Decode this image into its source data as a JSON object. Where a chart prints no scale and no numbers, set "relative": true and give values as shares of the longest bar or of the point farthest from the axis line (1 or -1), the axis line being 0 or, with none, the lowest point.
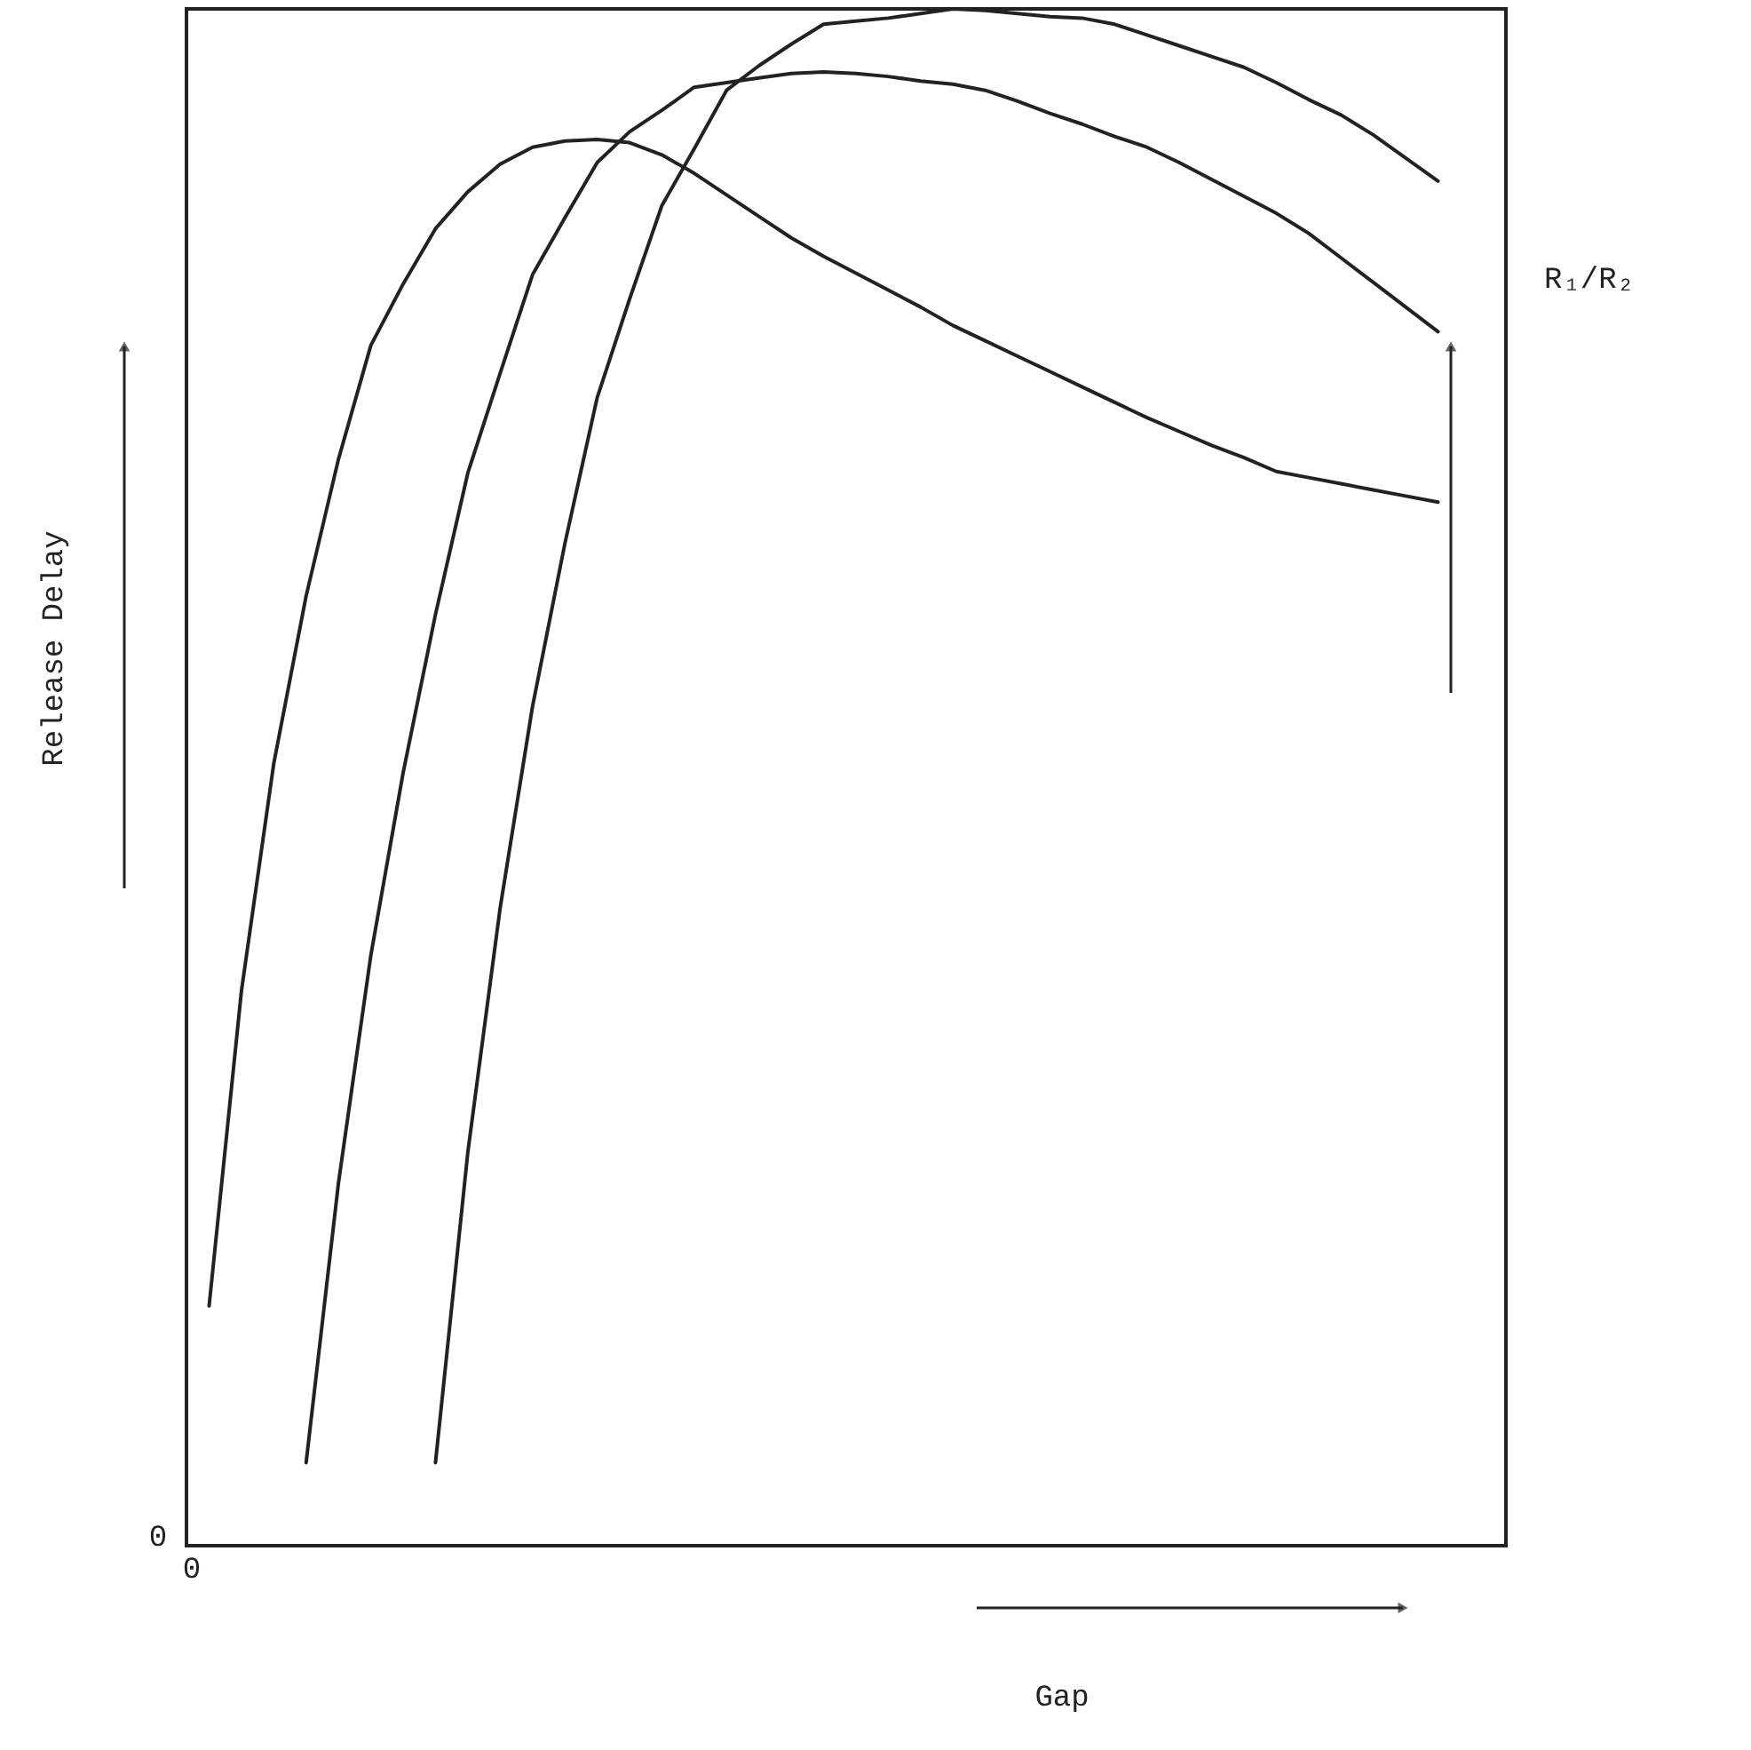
{
  "chart_data": {
    "type": "line",
    "relative": true,
    "xlabel": "Gap",
    "ylabel": "Release Delay",
    "annotations": [
      "R₁/R₂",
      "0",
      "0"
    ],
    "marker": "none",
    "line_style": "solid",
    "categories": [
      null,
      null,
      null,
      null,
      null,
      null,
      null,
      null,
      null,
      null,
      null,
      null,
      null,
      null,
      null,
      null,
      null,
      null,
      null,
      null,
      null,
      null,
      null,
      null,
      null,
      null,
      null,
      null,
      null,
      null,
      null,
      null,
      null,
      null,
      null,
      null,
      null,
      null,
      null
    ],
    "series": [
      {
        "color": "#222222",
        "values": [
          0.156,
          0.361,
          0.509,
          0.618,
          0.707,
          0.781,
          0.821,
          0.857,
          0.881,
          0.899,
          0.91,
          0.914,
          0.915,
          0.913,
          0.905,
          0.893,
          0.879,
          0.865,
          0.851,
          0.839,
          0.828,
          0.817,
          0.806,
          0.794,
          0.784,
          0.774,
          0.764,
          0.754,
          0.744,
          0.734,
          0.725,
          0.716,
          0.708,
          0.699,
          0.695,
          0.691,
          0.687,
          0.683,
          0.679
        ]
      },
      {
        "color": "#222222",
        "values": [
          null,
          null,
          null,
          0.054,
          0.236,
          0.384,
          0.503,
          0.606,
          0.698,
          0.763,
          0.827,
          0.864,
          0.9,
          0.92,
          0.934,
          0.949,
          0.952,
          0.955,
          0.958,
          0.959,
          0.958,
          0.956,
          0.953,
          0.951,
          0.947,
          0.94,
          0.932,
          0.925,
          0.917,
          0.91,
          0.9,
          0.889,
          0.878,
          0.867,
          0.854,
          0.838,
          0.822,
          0.806,
          0.79
        ]
      },
      {
        "color": "#222222",
        "values": [
          null,
          null,
          null,
          null,
          null,
          null,
          null,
          0.054,
          0.256,
          0.415,
          0.546,
          0.652,
          0.747,
          0.811,
          0.872,
          0.909,
          0.947,
          0.963,
          0.977,
          0.99,
          0.992,
          0.994,
          0.997,
          1.0,
          0.999,
          0.997,
          0.995,
          0.994,
          0.99,
          0.983,
          0.976,
          0.969,
          0.962,
          0.952,
          0.941,
          0.931,
          0.918,
          0.903,
          0.888
        ]
      }
    ]
  }
}
